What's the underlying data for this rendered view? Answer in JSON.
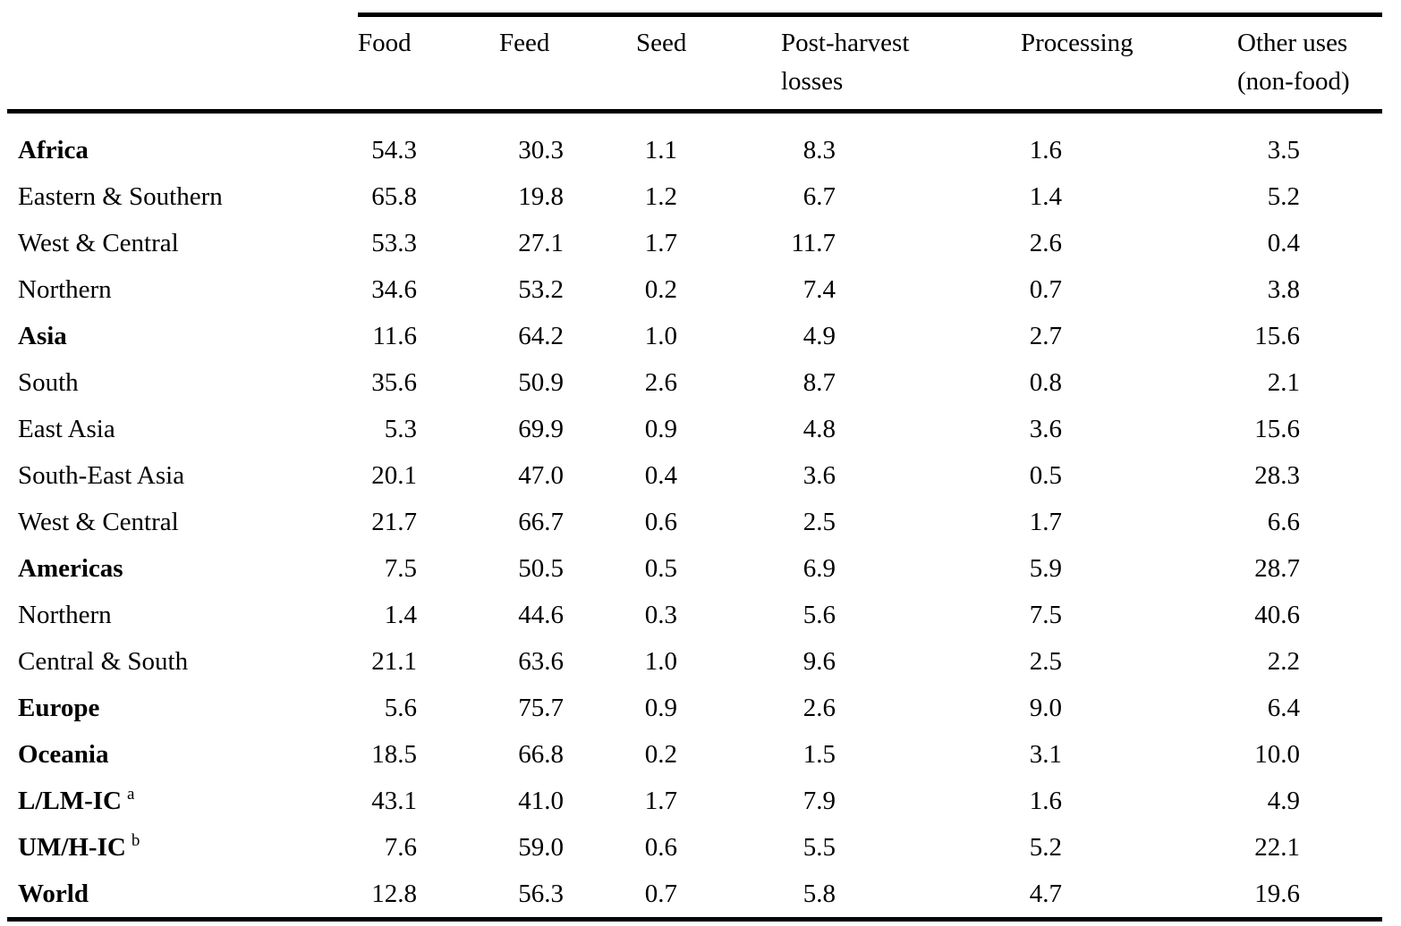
{
  "table": {
    "columns": [
      {
        "line1": "Food",
        "line2": ""
      },
      {
        "line1": "Feed",
        "line2": ""
      },
      {
        "line1": "Seed",
        "line2": ""
      },
      {
        "line1": "Post-harvest",
        "line2": "losses"
      },
      {
        "line1": "Processing",
        "line2": ""
      },
      {
        "line1": "Other uses",
        "line2": "(non-food)"
      }
    ],
    "rows": [
      {
        "label": "Africa",
        "bold": true,
        "footnote": "",
        "values": [
          "54.3",
          "30.3",
          "1.1",
          "8.3",
          "1.6",
          "3.5"
        ]
      },
      {
        "label": "Eastern & Southern",
        "bold": false,
        "footnote": "",
        "values": [
          "65.8",
          "19.8",
          "1.2",
          "6.7",
          "1.4",
          "5.2"
        ]
      },
      {
        "label": "West & Central",
        "bold": false,
        "footnote": "",
        "values": [
          "53.3",
          "27.1",
          "1.7",
          "11.7",
          "2.6",
          "0.4"
        ]
      },
      {
        "label": "Northern",
        "bold": false,
        "footnote": "",
        "values": [
          "34.6",
          "53.2",
          "0.2",
          "7.4",
          "0.7",
          "3.8"
        ]
      },
      {
        "label": "Asia",
        "bold": true,
        "footnote": "",
        "values": [
          "11.6",
          "64.2",
          "1.0",
          "4.9",
          "2.7",
          "15.6"
        ]
      },
      {
        "label": "South",
        "bold": false,
        "footnote": "",
        "values": [
          "35.6",
          "50.9",
          "2.6",
          "8.7",
          "0.8",
          "2.1"
        ]
      },
      {
        "label": "East Asia",
        "bold": false,
        "footnote": "",
        "values": [
          "5.3",
          "69.9",
          "0.9",
          "4.8",
          "3.6",
          "15.6"
        ]
      },
      {
        "label": "South-East Asia",
        "bold": false,
        "footnote": "",
        "values": [
          "20.1",
          "47.0",
          "0.4",
          "3.6",
          "0.5",
          "28.3"
        ]
      },
      {
        "label": "West & Central",
        "bold": false,
        "footnote": "",
        "values": [
          "21.7",
          "66.7",
          "0.6",
          "2.5",
          "1.7",
          "6.6"
        ]
      },
      {
        "label": "Americas",
        "bold": true,
        "footnote": "",
        "values": [
          "7.5",
          "50.5",
          "0.5",
          "6.9",
          "5.9",
          "28.7"
        ]
      },
      {
        "label": "Northern",
        "bold": false,
        "footnote": "",
        "values": [
          "1.4",
          "44.6",
          "0.3",
          "5.6",
          "7.5",
          "40.6"
        ]
      },
      {
        "label": "Central & South",
        "bold": false,
        "footnote": "",
        "values": [
          "21.1",
          "63.6",
          "1.0",
          "9.6",
          "2.5",
          "2.2"
        ]
      },
      {
        "label": "Europe",
        "bold": true,
        "footnote": "",
        "values": [
          "5.6",
          "75.7",
          "0.9",
          "2.6",
          "9.0",
          "6.4"
        ]
      },
      {
        "label": "Oceania",
        "bold": true,
        "footnote": "",
        "values": [
          "18.5",
          "66.8",
          "0.2",
          "1.5",
          "3.1",
          "10.0"
        ]
      },
      {
        "label": "L/LM-IC",
        "bold": true,
        "footnote": "a",
        "values": [
          "43.1",
          "41.0",
          "1.7",
          "7.9",
          "1.6",
          "4.9"
        ]
      },
      {
        "label": "UM/H-IC",
        "bold": true,
        "footnote": "b",
        "values": [
          "7.6",
          "59.0",
          "0.6",
          "5.5",
          "5.2",
          "22.1"
        ]
      },
      {
        "label": "World",
        "bold": true,
        "footnote": "",
        "values": [
          "12.8",
          "56.3",
          "0.7",
          "5.8",
          "4.7",
          "19.6"
        ]
      }
    ]
  }
}
